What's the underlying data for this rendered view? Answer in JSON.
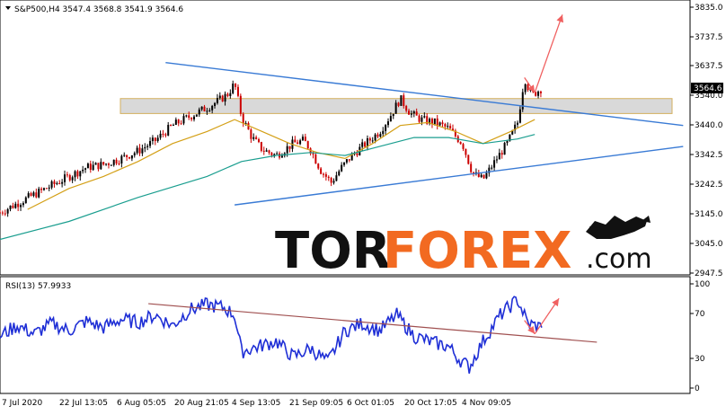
{
  "main_chart": {
    "header": "S&P500,H4  3547.4 3568.8 3541.9 3564.6",
    "price_axis_ticks": [
      "3835.0",
      "3737.5",
      "3637.5",
      "3540.0",
      "3440.0",
      "3342.5",
      "3242.5",
      "3145.0",
      "3045.0",
      "2947.5"
    ],
    "current_price_label": "3564.6"
  },
  "rsi_panel": {
    "header": "RSI(13) 57.9933",
    "axis_ticks": [
      "100",
      "70",
      "30",
      "0"
    ]
  },
  "time_axis_ticks": [
    "7 Jul 2020",
    "22 Jul 13:05",
    "6 Aug 05:05",
    "20 Aug 21:05",
    "4 Sep 13:05",
    "21 Sep 09:05",
    "6 Oct 01:05",
    "20 Oct 17:05",
    "4 Nov 09:05"
  ],
  "watermark": {
    "brand_part1": "TOR",
    "brand_part2": "FOREX",
    "brand_suffix": ".com"
  },
  "colors": {
    "bull_candle": "#000000",
    "bear_candle": "#cc0000",
    "ma_fast": "#d4a017",
    "ma_slow": "#1a9e8f",
    "trendline": "#3a7bd5",
    "rsi_line": "#1f2fd6",
    "rsi_trendline": "#a05050",
    "forecast_arrow": "#f06060",
    "zone_fill": "#d9d9d9",
    "zone_border": "#d4b060",
    "brand_orange": "#f26a21"
  },
  "chart_data": [
    {
      "type": "candlestick",
      "title": "S&P500,H4",
      "ohlc_last": {
        "open": 3547.4,
        "high": 3568.8,
        "low": 3541.9,
        "close": 3564.6
      },
      "x_ticks": [
        "7 Jul 2020",
        "22 Jul 13:05",
        "6 Aug 05:05",
        "20 Aug 21:05",
        "4 Sep 13:05",
        "21 Sep 09:05",
        "6 Oct 01:05",
        "20 Oct 17:05",
        "4 Nov 09:05"
      ],
      "ylim": [
        2947.5,
        3835.0
      ],
      "y_ticks": [
        3835.0,
        3737.5,
        3637.5,
        3540.0,
        3440.0,
        3342.5,
        3242.5,
        3145.0,
        3045.0,
        2947.5
      ],
      "close_path": [
        [
          0,
          3150
        ],
        [
          0.5,
          3180
        ],
        [
          1,
          3210
        ],
        [
          1.5,
          3240
        ],
        [
          2,
          3270
        ],
        [
          2.5,
          3300
        ],
        [
          3,
          3310
        ],
        [
          3.5,
          3330
        ],
        [
          4,
          3355
        ],
        [
          4.5,
          3390
        ],
        [
          5,
          3440
        ],
        [
          5.5,
          3470
        ],
        [
          6,
          3500
        ],
        [
          6.3,
          3520
        ],
        [
          6.6,
          3545
        ],
        [
          6.8,
          3580
        ],
        [
          7,
          3470
        ],
        [
          7.3,
          3400
        ],
        [
          7.6,
          3360
        ],
        [
          8,
          3340
        ],
        [
          8.5,
          3380
        ],
        [
          8.8,
          3390
        ],
        [
          9,
          3360
        ],
        [
          9.3,
          3290
        ],
        [
          9.6,
          3250
        ],
        [
          9.9,
          3300
        ],
        [
          10.2,
          3340
        ],
        [
          10.6,
          3380
        ],
        [
          11,
          3420
        ],
        [
          11.3,
          3470
        ],
        [
          11.6,
          3530
        ],
        [
          11.9,
          3480
        ],
        [
          12.2,
          3460
        ],
        [
          12.6,
          3450
        ],
        [
          13,
          3430
        ],
        [
          13.4,
          3380
        ],
        [
          13.7,
          3280
        ],
        [
          14,
          3260
        ],
        [
          14.4,
          3330
        ],
        [
          14.7,
          3380
        ],
        [
          15,
          3450
        ],
        [
          15.2,
          3600
        ],
        [
          15.4,
          3540
        ],
        [
          15.7,
          3564.6
        ]
      ],
      "moving_averages": [
        {
          "color_key": "ma_fast",
          "path": [
            [
              0.8,
              3160
            ],
            [
              2,
              3230
            ],
            [
              3,
              3270
            ],
            [
              4,
              3320
            ],
            [
              5,
              3380
            ],
            [
              6,
              3420
            ],
            [
              6.8,
              3460
            ],
            [
              7.6,
              3420
            ],
            [
              8.4,
              3380
            ],
            [
              9.2,
              3350
            ],
            [
              10,
              3330
            ],
            [
              10.8,
              3380
            ],
            [
              11.6,
              3440
            ],
            [
              12.4,
              3450
            ],
            [
              13.2,
              3420
            ],
            [
              14,
              3380
            ],
            [
              14.8,
              3420
            ],
            [
              15.5,
              3460
            ]
          ]
        },
        {
          "color_key": "ma_slow",
          "path": [
            [
              0,
              3060
            ],
            [
              2,
              3120
            ],
            [
              4,
              3200
            ],
            [
              6,
              3270
            ],
            [
              7,
              3320
            ],
            [
              8,
              3340
            ],
            [
              9,
              3350
            ],
            [
              10,
              3340
            ],
            [
              11,
              3370
            ],
            [
              12,
              3400
            ],
            [
              13,
              3400
            ],
            [
              14,
              3380
            ],
            [
              15,
              3395
            ],
            [
              15.5,
              3410
            ]
          ]
        }
      ],
      "trendlines": [
        {
          "from": [
            4.8,
            3650
          ],
          "to": [
            19.8,
            3440
          ]
        },
        {
          "from": [
            6.8,
            3175
          ],
          "to": [
            19.8,
            3370
          ]
        }
      ],
      "resistance_zone": [
        3480,
        3530
      ],
      "forecast_arrows": [
        {
          "from": [
            15.2,
            3600
          ],
          "to": [
            15.5,
            3550
          ]
        },
        {
          "from": [
            15.5,
            3550
          ],
          "to": [
            16.3,
            3810
          ]
        }
      ]
    },
    {
      "type": "line",
      "title": "RSI(13) 57.9933",
      "current_value": 57.9933,
      "ylim": [
        0,
        100
      ],
      "y_ticks": [
        100,
        70,
        30,
        0
      ],
      "path": [
        [
          0,
          50
        ],
        [
          0.5,
          60
        ],
        [
          1,
          52
        ],
        [
          1.5,
          62
        ],
        [
          2,
          55
        ],
        [
          2.5,
          64
        ],
        [
          3,
          58
        ],
        [
          3.5,
          66
        ],
        [
          4,
          63
        ],
        [
          4.5,
          70
        ],
        [
          5,
          60
        ],
        [
          5.5,
          75
        ],
        [
          6,
          80
        ],
        [
          6.5,
          77
        ],
        [
          6.8,
          70
        ],
        [
          7,
          35
        ],
        [
          7.5,
          40
        ],
        [
          8,
          45
        ],
        [
          8.5,
          30
        ],
        [
          9,
          38
        ],
        [
          9.5,
          25
        ],
        [
          10,
          55
        ],
        [
          10.5,
          62
        ],
        [
          11,
          55
        ],
        [
          11.5,
          70
        ],
        [
          12,
          50
        ],
        [
          12.5,
          44
        ],
        [
          13,
          40
        ],
        [
          13.3,
          28
        ],
        [
          13.6,
          20
        ],
        [
          14,
          45
        ],
        [
          14.5,
          70
        ],
        [
          15,
          85
        ],
        [
          15.3,
          62
        ],
        [
          15.7,
          57.9933
        ]
      ],
      "trendline": {
        "from": [
          4.3,
          81
        ],
        "to": [
          17.3,
          44
        ]
      },
      "forecast_arrows": [
        {
          "from": [
            15.2,
            65
          ],
          "to": [
            15.5,
            52
          ]
        },
        {
          "from": [
            15.5,
            52
          ],
          "to": [
            16.2,
            86
          ]
        }
      ]
    }
  ]
}
